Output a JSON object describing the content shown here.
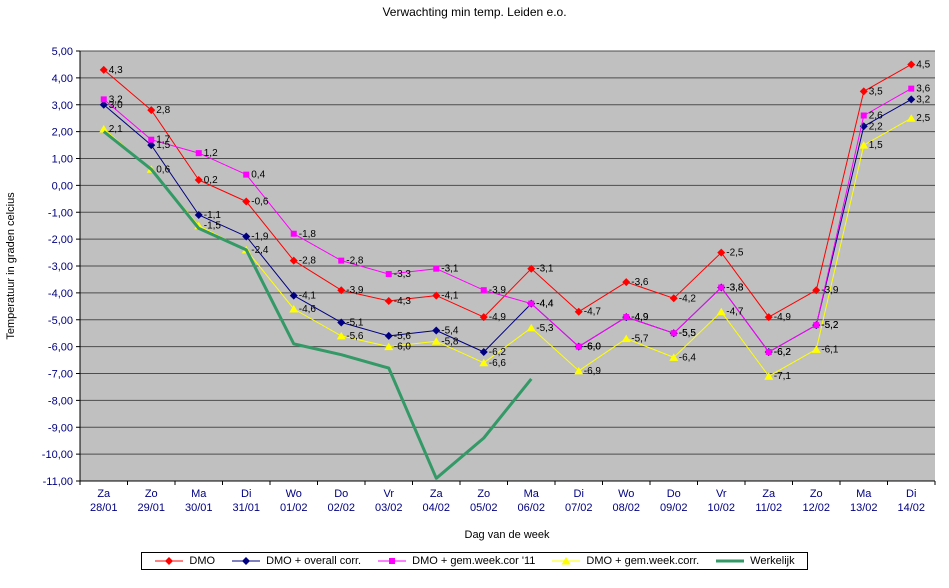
{
  "chart_data": {
    "type": "line",
    "title": "Verwachting min temp. Leiden e.o.",
    "xlabel": "Dag van de week",
    "ylabel": "Temperatuur in graden celcius",
    "ylim": [
      -11,
      5
    ],
    "ytick_step": 1,
    "grid": true,
    "legend_position": "bottom",
    "plot_bg_color": "#C0C0C0",
    "gridline_color": "#4D4D4D",
    "axis_color": "#000000",
    "tick_label_color": "#000080",
    "categories": [
      {
        "day": "Za",
        "date": "28/01"
      },
      {
        "day": "Zo",
        "date": "29/01"
      },
      {
        "day": "Ma",
        "date": "30/01"
      },
      {
        "day": "Di",
        "date": "31/01"
      },
      {
        "day": "Wo",
        "date": "01/02"
      },
      {
        "day": "Do",
        "date": "02/02"
      },
      {
        "day": "Vr",
        "date": "03/02"
      },
      {
        "day": "Za",
        "date": "04/02"
      },
      {
        "day": "Zo",
        "date": "05/02"
      },
      {
        "day": "Ma",
        "date": "06/02"
      },
      {
        "day": "Di",
        "date": "07/02"
      },
      {
        "day": "Wo",
        "date": "08/02"
      },
      {
        "day": "Do",
        "date": "09/02"
      },
      {
        "day": "Vr",
        "date": "10/02"
      },
      {
        "day": "Za",
        "date": "11/02"
      },
      {
        "day": "Zo",
        "date": "12/02"
      },
      {
        "day": "Ma",
        "date": "13/02"
      },
      {
        "day": "Di",
        "date": "14/02"
      }
    ],
    "series": [
      {
        "id": "dmo",
        "name": "DMO",
        "color": "#FF0000",
        "marker": "diamond",
        "line_width": 1,
        "show_labels": true,
        "values": [
          4.3,
          2.8,
          0.2,
          -0.6,
          -2.8,
          -3.9,
          -4.3,
          -4.1,
          -4.9,
          -3.1,
          -4.7,
          -3.6,
          -4.2,
          -2.5,
          -4.9,
          -3.9,
          3.5,
          4.5
        ]
      },
      {
        "id": "dmo-overall-corr",
        "name": "DMO + overall corr.",
        "color": "#000080",
        "marker": "diamond",
        "line_width": 1,
        "show_labels": true,
        "values": [
          3.0,
          1.5,
          -1.1,
          -1.9,
          -4.1,
          -5.1,
          -5.6,
          -5.4,
          -6.2,
          -4.4,
          -6.0,
          -4.9,
          -5.5,
          -3.8,
          -6.2,
          -5.2,
          2.2,
          3.2
        ]
      },
      {
        "id": "dmo-gem-week-cor-11",
        "name": "DMO + gem.week.cor '11",
        "color": "#FF00FF",
        "marker": "square",
        "line_width": 1,
        "show_labels": true,
        "values": [
          3.2,
          1.7,
          1.2,
          0.4,
          -1.8,
          -2.8,
          -3.3,
          -3.1,
          -3.9,
          -4.4,
          -6.0,
          -4.9,
          -5.5,
          -3.8,
          -6.2,
          -5.2,
          2.6,
          3.6
        ]
      },
      {
        "id": "dmo-gem-week-corr",
        "name": "DMO + gem.week.corr.",
        "color": "#FFFF00",
        "marker": "triangle",
        "line_width": 1,
        "show_labels": true,
        "values": [
          2.1,
          0.6,
          -1.5,
          -2.4,
          -4.6,
          -5.6,
          -6.0,
          -5.8,
          -6.6,
          -5.3,
          -6.9,
          -5.7,
          -6.4,
          -4.7,
          -7.1,
          -6.1,
          1.5,
          2.5
        ]
      },
      {
        "id": "werkelijk",
        "name": "Werkelijk",
        "color": "#339966",
        "marker": "none",
        "line_width": 3,
        "show_labels": false,
        "values": [
          2.0,
          0.6,
          -1.6,
          -2.4,
          -5.9,
          -6.3,
          -6.8,
          -10.9,
          -9.4,
          -7.2,
          null,
          null,
          null,
          null,
          null,
          null,
          null,
          null
        ]
      }
    ]
  }
}
